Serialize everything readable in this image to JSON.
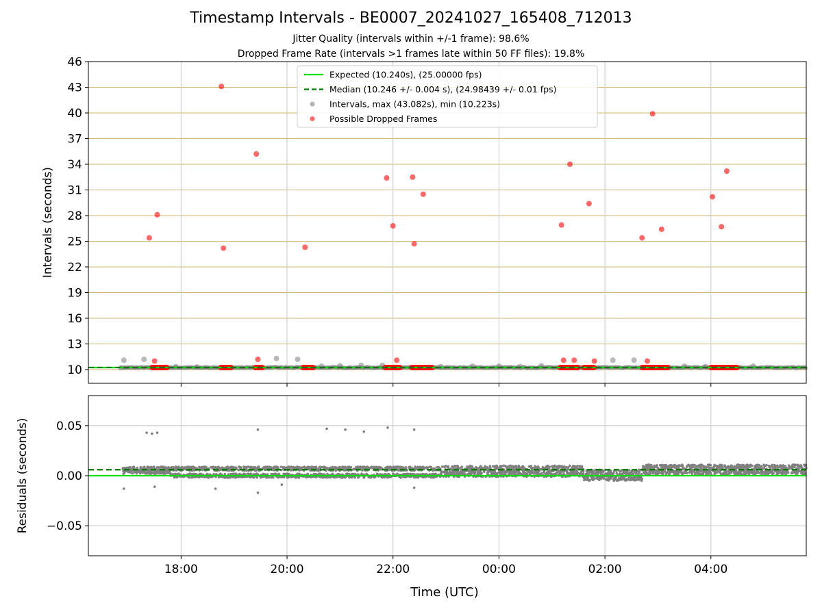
{
  "figure": {
    "title": "Timestamp Intervals - BE0007_20241027_165408_712013",
    "subtitle_1": "Jitter Quality (intervals within +/-1 frame): 98.6%",
    "subtitle_2": "Dropped Frame Rate (intervals >1 frames late within 50 FF files): 19.8%"
  },
  "colors": {
    "expected": "#00e000",
    "median": "#007a00",
    "intervals": "#808080",
    "dropped": "#ff0000",
    "hgrid_top": "#d2b46a",
    "grid": "#c8c8c8"
  },
  "chart_data": [
    {
      "type": "scatter",
      "panel": "top",
      "ylabel": "Intervals (seconds)",
      "ylim": [
        8.4,
        46
      ],
      "yticks": [
        10,
        13,
        16,
        19,
        22,
        25,
        28,
        31,
        34,
        37,
        40,
        43,
        46
      ],
      "grid": true,
      "legend": {
        "placement": "top-center",
        "entries": [
          {
            "label": "Expected (10.240s), (25.00000 fps)",
            "style": "solid-line",
            "color": "#00e000"
          },
          {
            "label": "Median (10.246 +/- 0.004 s), (24.98439 +/- 0.01 fps)",
            "style": "dashed-line",
            "color": "#007a00"
          },
          {
            "label": "Intervals, max (43.082s), min (10.223s)",
            "style": "gray-marker",
            "color": "#808080"
          },
          {
            "label": "Possible Dropped Frames",
            "style": "red-marker",
            "color": "#ff0000"
          }
        ]
      },
      "expected": 10.24,
      "median": 10.246,
      "series": [
        {
          "name": "Intervals, max (43.082s), min (10.223s)",
          "points": [
            [
              16.92,
              11.1
            ],
            [
              17.3,
              11.2
            ],
            [
              17.9,
              10.35
            ],
            [
              18.3,
              10.3
            ],
            [
              19.8,
              11.3
            ],
            [
              20.2,
              11.2
            ],
            [
              20.65,
              10.4
            ],
            [
              21.0,
              10.45
            ],
            [
              21.4,
              10.5
            ],
            [
              21.8,
              10.5
            ],
            [
              22.9,
              10.35
            ],
            [
              23.5,
              10.4
            ],
            [
              24.0,
              10.4
            ],
            [
              24.4,
              10.35
            ],
            [
              24.8,
              10.45
            ],
            [
              26.15,
              11.1
            ],
            [
              26.55,
              11.1
            ],
            [
              27.5,
              10.4
            ],
            [
              27.9,
              10.35
            ],
            [
              28.8,
              10.4
            ]
          ]
        },
        {
          "name": "Possible Dropped Frames",
          "points": [
            [
              17.4,
              25.4
            ],
            [
              17.55,
              28.1
            ],
            [
              17.5,
              11.0
            ],
            [
              18.76,
              43.1
            ],
            [
              18.8,
              24.2
            ],
            [
              19.42,
              35.2
            ],
            [
              19.45,
              11.2
            ],
            [
              20.34,
              24.3
            ],
            [
              21.88,
              32.4
            ],
            [
              22.0,
              26.8
            ],
            [
              22.07,
              11.1
            ],
            [
              22.37,
              32.5
            ],
            [
              22.4,
              24.7
            ],
            [
              22.57,
              30.5
            ],
            [
              25.18,
              26.9
            ],
            [
              25.22,
              11.1
            ],
            [
              25.34,
              34.0
            ],
            [
              25.42,
              11.1
            ],
            [
              25.7,
              29.4
            ],
            [
              25.8,
              11.0
            ],
            [
              26.7,
              25.4
            ],
            [
              26.8,
              11.0
            ],
            [
              26.9,
              39.9
            ],
            [
              27.07,
              26.4
            ],
            [
              28.03,
              30.2
            ],
            [
              28.2,
              26.7
            ],
            [
              28.3,
              33.2
            ]
          ],
          "clusters": [
            [
              17.45,
              17.75
            ],
            [
              18.75,
              18.95
            ],
            [
              19.4,
              19.55
            ],
            [
              20.3,
              20.5
            ],
            [
              21.85,
              22.15
            ],
            [
              22.35,
              22.75
            ],
            [
              25.15,
              25.5
            ],
            [
              25.6,
              25.8
            ],
            [
              26.7,
              27.2
            ],
            [
              28.0,
              28.5
            ]
          ]
        }
      ]
    },
    {
      "type": "scatter",
      "panel": "bottom",
      "xlabel": "Time (UTC)",
      "ylabel": "Residuals (seconds)",
      "ylim": [
        -0.08,
        0.08
      ],
      "yticks": [
        0.05,
        0.0,
        -0.05
      ],
      "ytick_labels": [
        "0.05",
        "0.00",
        "−0.05"
      ],
      "xlim_hours": [
        16.25,
        29.8
      ],
      "xticks_hours": [
        18,
        20,
        22,
        24,
        26,
        28
      ],
      "xtick_labels": [
        "18:00",
        "20:00",
        "22:00",
        "00:00",
        "02:00",
        "04:00"
      ],
      "grid": true,
      "expected": 0.0,
      "median": 0.006,
      "series": [
        {
          "name": "Residuals",
          "points": [
            [
              17.35,
              0.043
            ],
            [
              17.45,
              0.042
            ],
            [
              17.55,
              0.043
            ],
            [
              19.45,
              0.046
            ],
            [
              20.75,
              0.047
            ],
            [
              21.1,
              0.046
            ],
            [
              21.45,
              0.044
            ],
            [
              21.9,
              0.048
            ],
            [
              22.4,
              0.046
            ],
            [
              16.92,
              -0.013
            ],
            [
              17.5,
              -0.011
            ],
            [
              18.65,
              -0.013
            ],
            [
              19.45,
              -0.017
            ],
            [
              19.9,
              -0.009
            ],
            [
              22.4,
              -0.012
            ]
          ],
          "segments": [
            [
              16.9,
              17.8,
              0.007,
              0.004,
              0.006
            ],
            [
              17.8,
              18.3,
              0.007,
              0.0,
              0.0
            ],
            [
              18.3,
              19.5,
              0.007,
              0.0,
              0.004
            ],
            [
              19.5,
              22.2,
              0.007,
              0.0,
              0.003
            ],
            [
              22.2,
              22.9,
              0.007,
              0.0,
              0.006
            ],
            [
              22.9,
              24.6,
              0.008,
              0.0,
              0.005
            ],
            [
              24.6,
              25.6,
              0.008,
              0.0,
              0.006
            ],
            [
              25.6,
              26.7,
              0.004,
              -0.004,
              0.006
            ],
            [
              26.7,
              29.8,
              0.009,
              0.002,
              0.005
            ]
          ]
        }
      ]
    }
  ]
}
